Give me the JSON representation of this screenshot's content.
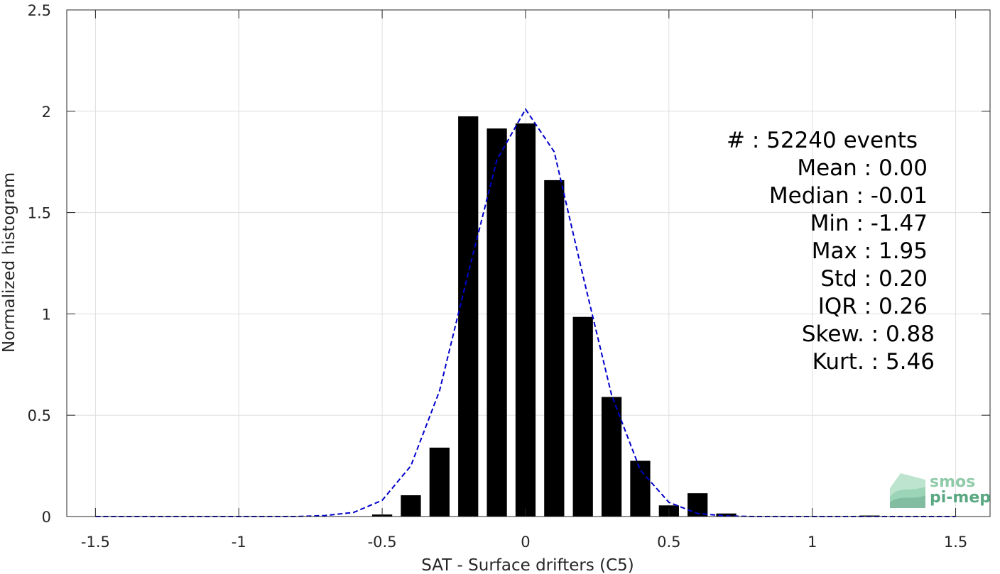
{
  "chart_data": {
    "type": "bar",
    "xlabel": "SAT - Surface drifters (C5)",
    "ylabel": "Normalized histogram",
    "xlim": [
      -1.6,
      1.62
    ],
    "ylim": [
      0,
      2.5
    ],
    "xticks": [
      -1.5,
      -1,
      -0.5,
      0,
      0.5,
      1,
      1.5
    ],
    "xtick_labels": [
      "-1.5",
      "-1",
      "-0.5",
      "0",
      "0.5",
      "1",
      "1.5"
    ],
    "yticks": [
      0,
      0.5,
      1,
      1.5,
      2,
      2.5
    ],
    "ytick_labels": [
      "0",
      "0.5",
      "1",
      "1.5",
      "2",
      "2.5"
    ],
    "grid": true,
    "bin_width": 0.1,
    "bar_fraction": 0.7,
    "bar_color": "#000000",
    "bars": {
      "x": [
        -1.4,
        -1.3,
        -1.2,
        -1.1,
        -1.0,
        -0.9,
        -0.8,
        -0.7,
        -0.6,
        -0.5,
        -0.4,
        -0.3,
        -0.2,
        -0.1,
        0.0,
        0.1,
        0.2,
        0.3,
        0.4,
        0.5,
        0.6,
        0.7,
        0.8,
        0.9,
        1.0,
        1.1,
        1.2,
        1.3,
        1.4
      ],
      "values": [
        0,
        0,
        0,
        0,
        0,
        0,
        0,
        0,
        0,
        0.01,
        0.105,
        0.34,
        1.975,
        1.915,
        1.94,
        1.66,
        0.985,
        0.59,
        0.275,
        0.055,
        0.115,
        0.015,
        0,
        0,
        0,
        0,
        0.005,
        0,
        0
      ]
    },
    "fit": {
      "style": "dashed",
      "color": "#0000cc",
      "x": [
        -1.5,
        -1.4,
        -1.3,
        -1.2,
        -1.1,
        -1.0,
        -0.9,
        -0.8,
        -0.7,
        -0.6,
        -0.5,
        -0.4,
        -0.3,
        -0.2,
        -0.1,
        0.0,
        0.1,
        0.2,
        0.3,
        0.4,
        0.5,
        0.6,
        0.7,
        0.8,
        0.9,
        1.0,
        1.1,
        1.2,
        1.3,
        1.4,
        1.5
      ],
      "values": [
        0,
        0,
        0,
        0,
        0,
        0,
        0,
        0,
        0.005,
        0.02,
        0.08,
        0.25,
        0.62,
        1.2,
        1.76,
        2.01,
        1.8,
        1.19,
        0.6,
        0.23,
        0.07,
        0.015,
        0.003,
        0,
        0,
        0,
        0,
        0,
        0,
        0,
        0
      ]
    },
    "stats_lines": [
      "#   : 52240 events",
      "Mean : 0.00",
      "Median : -0.01",
      "Min : -1.47",
      "Max : 1.95",
      "Std : 0.20",
      "IQR : 0.26",
      "Skew. : 0.88",
      "Kurt. : 5.46"
    ]
  },
  "logo": {
    "line1": "smos",
    "line2": "pi-mep",
    "color": "#5aa882"
  }
}
